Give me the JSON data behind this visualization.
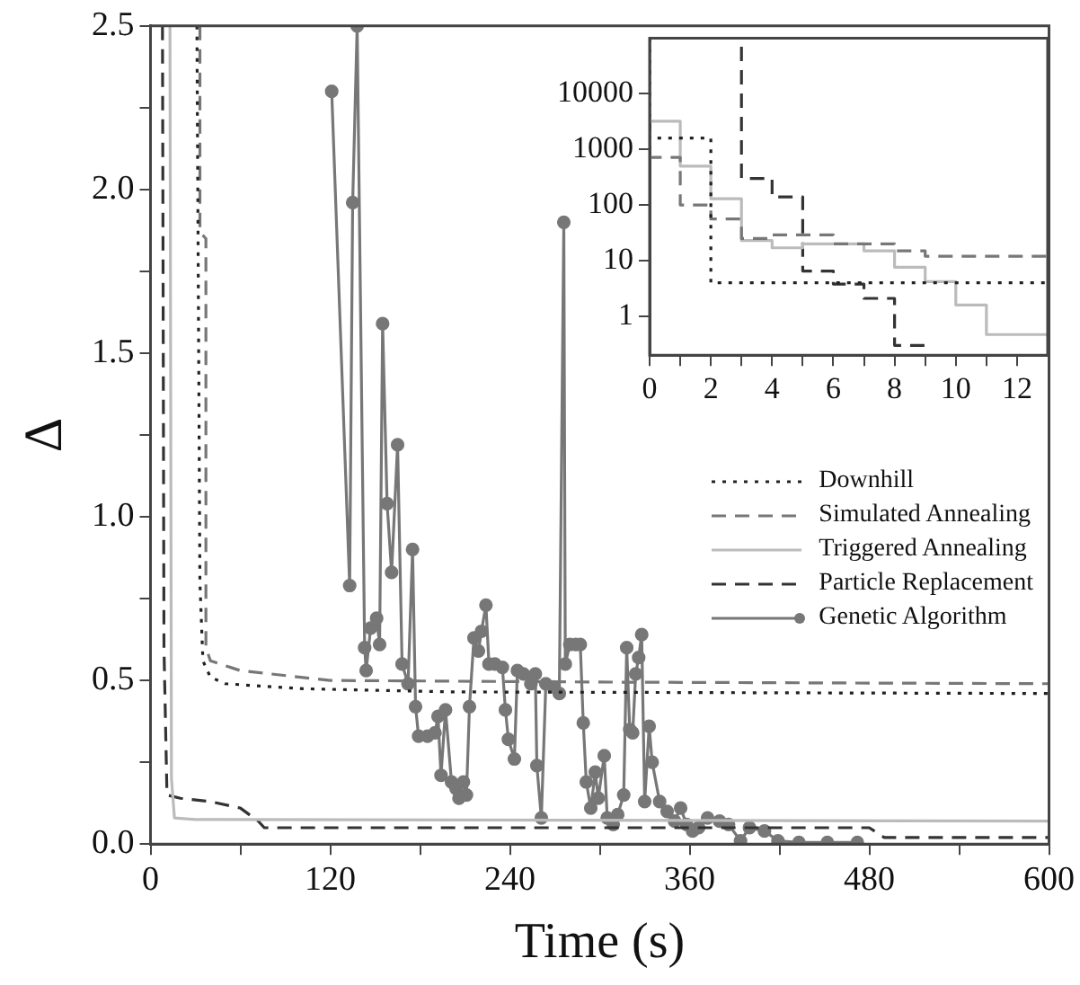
{
  "chart_data": [
    {
      "type": "line",
      "xlabel": "Time (s)",
      "ylabel": "Δ",
      "xlim": [
        0,
        600
      ],
      "xticks": [
        0,
        {
          "value": 60,
          "label": null
        },
        120,
        {
          "value": 180,
          "label": null
        },
        240,
        {
          "value": 300,
          "label": null
        },
        360,
        {
          "value": 420,
          "label": null
        },
        480,
        {
          "value": 540,
          "label": null
        },
        600
      ],
      "ylim": [
        0,
        2.5
      ],
      "yticks": [
        {
          "value": 0,
          "label": "0.0"
        },
        {
          "value": 0.25,
          "label": null
        },
        0.5,
        {
          "value": 0.75,
          "label": null
        },
        {
          "value": 1,
          "label": "1.0"
        },
        {
          "value": 1.25,
          "label": null
        },
        1.5,
        {
          "value": 1.75,
          "label": null
        },
        {
          "value": 2,
          "label": "2.0"
        },
        {
          "value": 2.25,
          "label": null
        },
        2.5
      ],
      "legend": "right",
      "series": [
        {
          "name": "Downhill",
          "color": "#222222",
          "line_style": "dotted",
          "marker": "none",
          "x": [
            31,
            33,
            35,
            40,
            50,
            100,
            200,
            600
          ],
          "values": [
            2.5,
            0.8,
            0.56,
            0.51,
            0.49,
            0.475,
            0.465,
            0.46
          ]
        },
        {
          "name": "Simulated Annealing",
          "color": "#777777",
          "line_style": "dashed",
          "marker": "none",
          "x": [
            33,
            33,
            37,
            37,
            40,
            60,
            120,
            300,
            600
          ],
          "values": [
            2.5,
            1.87,
            1.85,
            0.6,
            0.56,
            0.53,
            0.5,
            0.495,
            0.49
          ]
        },
        {
          "name": "Triggered Annealing",
          "color": "#bbbbbb",
          "line_style": "solid",
          "marker": "none",
          "x": [
            13,
            14,
            16,
            30,
            600
          ],
          "values": [
            2.5,
            0.2,
            0.08,
            0.075,
            0.07
          ]
        },
        {
          "name": "Particle Replacement",
          "color": "#333333",
          "line_style": "dashed",
          "marker": "none",
          "x": [
            8,
            9,
            11,
            20,
            40,
            60,
            72,
            76,
            480,
            490,
            600
          ],
          "values": [
            2.5,
            0.6,
            0.15,
            0.14,
            0.13,
            0.11,
            0.07,
            0.05,
            0.05,
            0.02,
            0.02
          ]
        },
        {
          "name": "Genetic Algorithm",
          "color": "#777777",
          "line_style": "solid",
          "marker": "circle",
          "x": [
            121,
            133,
            135,
            138,
            143,
            144,
            147,
            151,
            153,
            155,
            158,
            161,
            165,
            168,
            172,
            175,
            177,
            179,
            185,
            190,
            192,
            194,
            197,
            201,
            204,
            206,
            209,
            211,
            213,
            216,
            219,
            221,
            224,
            226,
            230,
            235,
            237,
            239,
            243,
            245,
            249,
            254,
            257,
            258,
            261,
            264,
            269,
            273,
            276,
            277,
            280,
            284,
            287,
            289,
            291,
            294,
            297,
            299,
            303,
            305,
            309,
            312,
            316,
            318,
            320,
            322,
            324,
            326,
            328,
            330,
            333,
            335,
            340,
            345,
            350,
            354,
            358,
            362,
            366,
            372,
            380,
            386,
            394,
            400,
            410,
            419,
            433,
            452,
            472
          ],
          "values": [
            2.3,
            0.79,
            1.96,
            2.5,
            0.6,
            0.53,
            0.66,
            0.69,
            0.61,
            1.59,
            1.04,
            0.83,
            1.22,
            0.55,
            0.49,
            0.9,
            0.42,
            0.33,
            0.33,
            0.34,
            0.39,
            0.21,
            0.41,
            0.19,
            0.17,
            0.14,
            0.19,
            0.15,
            0.42,
            0.63,
            0.59,
            0.65,
            0.73,
            0.55,
            0.55,
            0.54,
            0.41,
            0.32,
            0.26,
            0.53,
            0.52,
            0.49,
            0.52,
            0.24,
            0.08,
            0.49,
            0.48,
            0.46,
            1.9,
            0.55,
            0.61,
            0.61,
            0.61,
            0.37,
            0.19,
            0.11,
            0.22,
            0.14,
            0.27,
            0.08,
            0.06,
            0.09,
            0.15,
            0.6,
            0.35,
            0.34,
            0.52,
            0.57,
            0.64,
            0.13,
            0.36,
            0.25,
            0.13,
            0.1,
            0.07,
            0.11,
            0.06,
            0.04,
            0.05,
            0.08,
            0.07,
            0.06,
            0.01,
            0.05,
            0.04,
            0.01,
            0.005,
            0.005,
            0.005
          ]
        }
      ]
    },
    {
      "type": "step",
      "log": "y",
      "xlim": [
        0,
        13
      ],
      "xticks": [
        0,
        {
          "value": 1,
          "label": null
        },
        2,
        {
          "value": 3,
          "label": null
        },
        4,
        {
          "value": 5,
          "label": null
        },
        6,
        {
          "value": 7,
          "label": null
        },
        8,
        {
          "value": 9,
          "label": null
        },
        10,
        {
          "value": 11,
          "label": null
        },
        12
      ],
      "ylim": [
        0.2,
        100000
      ],
      "yticks": [
        1,
        10,
        100,
        1000,
        10000
      ],
      "series": [
        {
          "color": "#222222",
          "line_style": "dotted",
          "x": [
            0,
            2,
            3,
            13
          ],
          "values": [
            100000,
            1600,
            4,
            4
          ]
        },
        {
          "color": "#777777",
          "line_style": "dashed",
          "x": [
            0,
            1,
            2,
            3,
            4,
            6,
            8,
            9,
            10,
            13
          ],
          "values": [
            100000,
            720,
            100,
            56,
            25,
            29,
            20,
            15,
            12,
            12
          ]
        },
        {
          "color": "#bbbbbb",
          "line_style": "solid",
          "x": [
            0,
            1,
            2,
            3,
            4,
            5,
            7,
            8,
            9,
            10,
            11,
            12,
            13
          ],
          "values": [
            100000,
            3200,
            500,
            130,
            23,
            17,
            20,
            15,
            7.6,
            4.2,
            1.6,
            0.47,
            0.47
          ]
        },
        {
          "color": "#333333",
          "line_style": "dashed",
          "x": [
            3,
            4,
            5,
            6,
            7,
            8,
            9
          ],
          "values": [
            70000,
            300,
            140,
            6.5,
            3.8,
            2.1,
            0.3
          ]
        }
      ]
    }
  ]
}
